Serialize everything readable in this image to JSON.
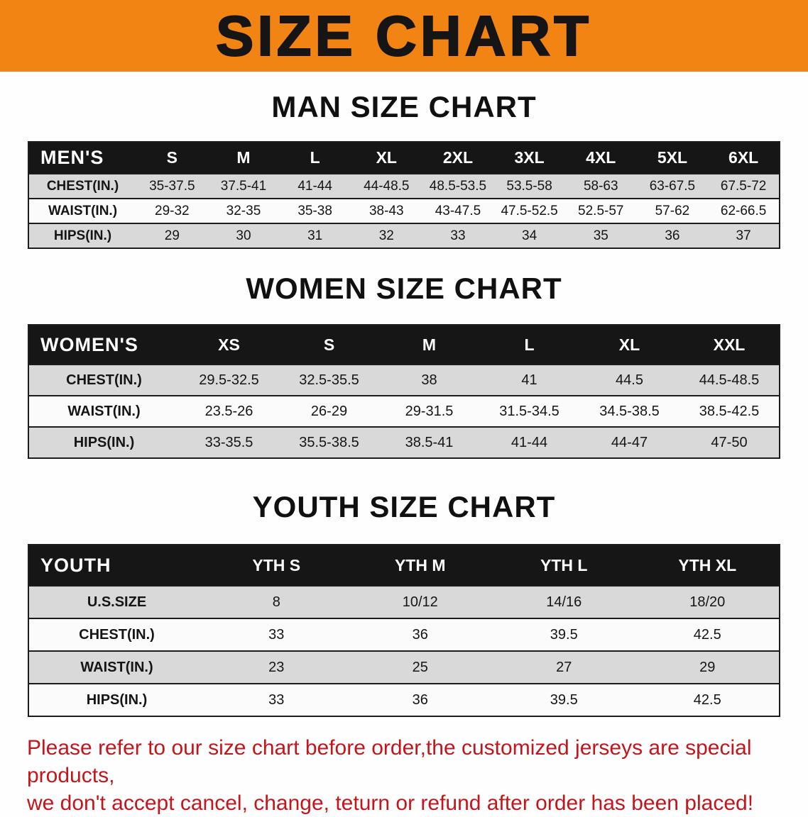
{
  "colors": {
    "banner_bg": "#f28413",
    "table_header_bg": "#161616",
    "row_shade_bg": "#d9d9d9",
    "row_plain_bg": "#fbfbfb",
    "disclaimer_red": "#c3161c"
  },
  "banner": {
    "title": "SIZE CHART"
  },
  "sections": [
    {
      "title": "MAN SIZE CHART",
      "header_label": "MEN'S",
      "columns": [
        "S",
        "M",
        "L",
        "XL",
        "2XL",
        "3XL",
        "4XL",
        "5XL",
        "6XL"
      ],
      "rows": [
        {
          "label": "CHEST(IN.)",
          "values": [
            "35-37.5",
            "37.5-41",
            "41-44",
            "44-48.5",
            "48.5-53.5",
            "53.5-58",
            "58-63",
            "63-67.5",
            "67.5-72"
          ]
        },
        {
          "label": "WAIST(IN.)",
          "values": [
            "29-32",
            "32-35",
            "35-38",
            "38-43",
            "43-47.5",
            "47.5-52.5",
            "52.5-57",
            "57-62",
            "62-66.5"
          ]
        },
        {
          "label": "HIPS(IN.)",
          "values": [
            "29",
            "30",
            "31",
            "32",
            "33",
            "34",
            "35",
            "36",
            "37"
          ]
        }
      ]
    },
    {
      "title": "WOMEN SIZE CHART",
      "header_label": "WOMEN'S",
      "columns": [
        "XS",
        "S",
        "M",
        "L",
        "XL",
        "XXL"
      ],
      "rows": [
        {
          "label": "CHEST(IN.)",
          "values": [
            "29.5-32.5",
            "32.5-35.5",
            "38",
            "41",
            "44.5",
            "44.5-48.5"
          ]
        },
        {
          "label": "WAIST(IN.)",
          "values": [
            "23.5-26",
            "26-29",
            "29-31.5",
            "31.5-34.5",
            "34.5-38.5",
            "38.5-42.5"
          ]
        },
        {
          "label": "HIPS(IN.)",
          "values": [
            "33-35.5",
            "35.5-38.5",
            "38.5-41",
            "41-44",
            "44-47",
            "47-50"
          ]
        }
      ]
    },
    {
      "title": "YOUTH SIZE CHART",
      "header_label": "YOUTH",
      "columns": [
        "YTH S",
        "YTH M",
        "YTH L",
        "YTH XL"
      ],
      "rows": [
        {
          "label": "U.S.SIZE",
          "values": [
            "8",
            "10/12",
            "14/16",
            "18/20"
          ]
        },
        {
          "label": "CHEST(IN.)",
          "values": [
            "33",
            "36",
            "39.5",
            "42.5"
          ]
        },
        {
          "label": "WAIST(IN.)",
          "values": [
            "23",
            "25",
            "27",
            "29"
          ]
        },
        {
          "label": "HIPS(IN.)",
          "values": [
            "33",
            "36",
            "39.5",
            "42.5"
          ]
        }
      ]
    }
  ],
  "disclaimer": {
    "lines": [
      "Please refer to our size chart before order,the customized jerseys are special products,",
      "we don't accept cancel, change, teturn or refund after order has been placed!"
    ]
  }
}
